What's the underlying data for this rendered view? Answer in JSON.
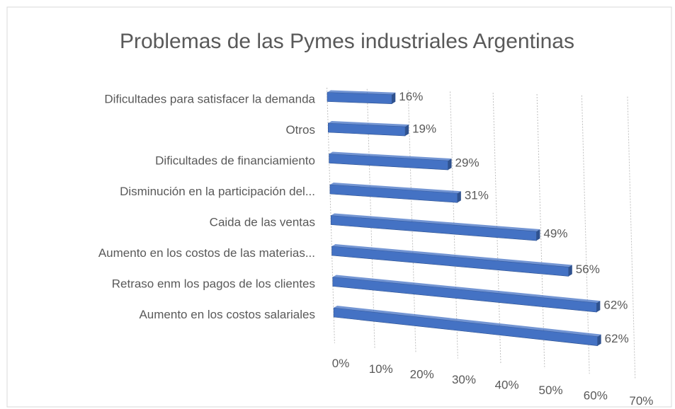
{
  "chart_data": {
    "type": "bar3d",
    "title": "Problemas de las Pymes industriales Argentinas",
    "categories": [
      "Dificultades para satisfacer la demanda",
      "Otros",
      "Dificultades de financiamiento",
      "Disminución en la participación del...",
      "Caida de las ventas",
      "Aumento en los costos de las materias...",
      "Retraso enm los pagos de los clientes",
      "Aumento en los costos salariales"
    ],
    "values": [
      16,
      19,
      29,
      31,
      49,
      56,
      62,
      62
    ],
    "value_labels": [
      "16%",
      "19%",
      "29%",
      "31%",
      "49%",
      "56%",
      "62%",
      "62%"
    ],
    "color": "#4472c4",
    "xlim": [
      0,
      70
    ],
    "xticks": [
      {
        "value": 0,
        "label": "0%"
      },
      {
        "value": 10,
        "label": "10%"
      },
      {
        "value": 20,
        "label": "20%"
      },
      {
        "value": 30,
        "label": "30%"
      },
      {
        "value": 40,
        "label": "40%"
      },
      {
        "value": 50,
        "label": "50%"
      },
      {
        "value": 60,
        "label": "60%"
      },
      {
        "value": 70,
        "label": "70%"
      }
    ],
    "grid": true
  }
}
